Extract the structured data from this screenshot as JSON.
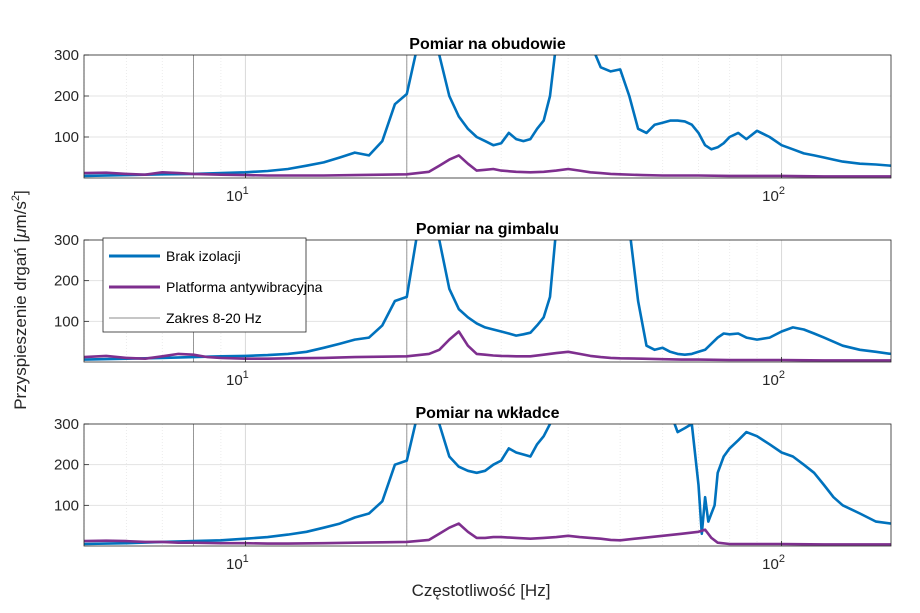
{
  "colors": {
    "brak": "#0072BD",
    "platforma": "#7E2F8E",
    "zakres": "#8c8c8c"
  },
  "legend": {
    "entries": [
      {
        "label": "Brak izolacji",
        "color": "#0072BD"
      },
      {
        "label": "Platforma antywibracyjna",
        "color": "#7E2F8E"
      },
      {
        "label": "Zakres 8-20 Hz",
        "color": "#8c8c8c"
      }
    ]
  },
  "ylabel": "Przyspieszenie drgań [μm/s²]",
  "ylabel_parts": {
    "pre": "Przyspieszenie drgań [",
    "mu": "μ",
    "mid": "m/s",
    "sup": "2",
    "post": "]"
  },
  "xlabel": "Częstotliwość [Hz]",
  "chart_data": [
    {
      "type": "line",
      "title": "Pomiar na obudowie",
      "xscale": "log",
      "xlim": [
        5,
        160
      ],
      "ylim": [
        0,
        300
      ],
      "yticks": [
        100,
        200,
        300
      ],
      "xticks": [
        {
          "value": 10,
          "base": "10",
          "exp": "1"
        },
        {
          "value": 100,
          "base": "10",
          "exp": "2"
        }
      ],
      "vlines": [
        8,
        20
      ],
      "grid": true,
      "series": [
        {
          "name": "Brak izolacji",
          "color": "#0072BD",
          "x": [
            5,
            6,
            7,
            8,
            9,
            10,
            11,
            12,
            13,
            14,
            15,
            16,
            17,
            18,
            19,
            20,
            21,
            22,
            23,
            24,
            25,
            26,
            27,
            28,
            29,
            30,
            31,
            32,
            33,
            34,
            35,
            36,
            37,
            38,
            40,
            42,
            44,
            46,
            48,
            50,
            52,
            54,
            56,
            58,
            60,
            62,
            64,
            66,
            68,
            70,
            72,
            74,
            76,
            78,
            80,
            83,
            86,
            90,
            95,
            100,
            105,
            110,
            115,
            120,
            125,
            130,
            140,
            150,
            160
          ],
          "y": [
            5,
            7,
            9,
            10,
            12,
            14,
            17,
            22,
            30,
            38,
            50,
            62,
            55,
            90,
            180,
            205,
            330,
            330,
            300,
            200,
            150,
            120,
            100,
            90,
            80,
            85,
            110,
            95,
            90,
            95,
            120,
            140,
            200,
            330,
            330,
            330,
            330,
            270,
            260,
            265,
            200,
            120,
            110,
            130,
            135,
            140,
            140,
            138,
            130,
            110,
            80,
            70,
            75,
            85,
            100,
            110,
            95,
            115,
            100,
            80,
            70,
            60,
            55,
            50,
            45,
            40,
            35,
            33,
            30
          ],
          "mask": []
        },
        {
          "name": "Platforma antywibracyjna",
          "color": "#7E2F8E",
          "x": [
            5,
            5.5,
            6,
            6.5,
            7,
            7.5,
            8,
            9,
            10,
            11,
            12,
            14,
            16,
            18,
            20,
            22,
            23,
            24,
            25,
            26,
            27,
            28,
            29,
            30,
            32,
            34,
            36,
            38,
            40,
            42,
            44,
            46,
            48,
            50,
            55,
            60,
            65,
            70,
            80,
            90,
            100,
            120,
            140,
            160
          ],
          "y": [
            12,
            13,
            10,
            8,
            14,
            12,
            10,
            8,
            7,
            6,
            6,
            6,
            7,
            8,
            9,
            15,
            30,
            45,
            55,
            35,
            18,
            20,
            22,
            18,
            15,
            14,
            15,
            18,
            22,
            18,
            14,
            12,
            10,
            9,
            7,
            6,
            6,
            6,
            5,
            5,
            5,
            4,
            4,
            4
          ]
        }
      ]
    },
    {
      "type": "line",
      "title": "Pomiar na gimbalu",
      "xscale": "log",
      "xlim": [
        5,
        160
      ],
      "ylim": [
        0,
        300
      ],
      "yticks": [
        100,
        200,
        300
      ],
      "xticks": [
        {
          "value": 10,
          "base": "10",
          "exp": "1"
        },
        {
          "value": 100,
          "base": "10",
          "exp": "2"
        }
      ],
      "vlines": [
        8,
        20
      ],
      "grid": true,
      "series": [
        {
          "name": "Brak izolacji",
          "color": "#0072BD",
          "x": [
            5,
            6,
            7,
            8,
            9,
            10,
            11,
            12,
            13,
            14,
            15,
            16,
            17,
            18,
            19,
            20,
            21,
            22,
            23,
            24,
            25,
            26,
            27,
            28,
            29,
            30,
            31,
            32,
            33,
            34,
            35,
            36,
            37,
            38,
            40,
            42,
            44,
            46,
            48,
            50,
            52,
            54,
            56,
            58,
            60,
            62,
            64,
            66,
            68,
            70,
            72,
            74,
            76,
            78,
            80,
            83,
            86,
            90,
            95,
            100,
            105,
            110,
            115,
            120,
            125,
            130,
            140,
            150,
            160
          ],
          "y": [
            6,
            8,
            10,
            12,
            14,
            15,
            17,
            20,
            25,
            35,
            45,
            55,
            60,
            90,
            150,
            160,
            330,
            330,
            300,
            180,
            130,
            110,
            95,
            85,
            80,
            75,
            70,
            65,
            68,
            72,
            90,
            110,
            160,
            330,
            330,
            330,
            330,
            330,
            330,
            330,
            330,
            150,
            40,
            30,
            35,
            25,
            20,
            18,
            20,
            25,
            30,
            45,
            60,
            70,
            68,
            70,
            60,
            55,
            60,
            75,
            85,
            80,
            70,
            60,
            50,
            40,
            30,
            25,
            20
          ]
        },
        {
          "name": "Platforma antywibracyjna",
          "color": "#7E2F8E",
          "x": [
            5,
            5.5,
            6,
            6.5,
            7,
            7.5,
            8,
            8.5,
            9,
            10,
            11,
            12,
            14,
            16,
            18,
            20,
            22,
            23,
            24,
            25,
            26,
            27,
            28,
            29,
            30,
            32,
            34,
            36,
            38,
            40,
            42,
            44,
            46,
            48,
            50,
            55,
            60,
            65,
            70,
            80,
            90,
            100,
            120,
            140,
            160
          ],
          "y": [
            12,
            15,
            10,
            8,
            14,
            20,
            18,
            12,
            10,
            8,
            8,
            9,
            10,
            12,
            13,
            14,
            20,
            30,
            55,
            75,
            40,
            20,
            18,
            16,
            15,
            14,
            14,
            18,
            22,
            25,
            20,
            15,
            12,
            10,
            9,
            8,
            7,
            6,
            6,
            5,
            5,
            5,
            4,
            4,
            4
          ]
        }
      ]
    },
    {
      "type": "line",
      "title": "Pomiar na wkładce",
      "xscale": "log",
      "xlim": [
        5,
        160
      ],
      "ylim": [
        0,
        300
      ],
      "yticks": [
        100,
        200,
        300
      ],
      "xticks": [
        {
          "value": 10,
          "base": "10",
          "exp": "1"
        },
        {
          "value": 100,
          "base": "10",
          "exp": "2"
        }
      ],
      "vlines": [
        8,
        20
      ],
      "grid": true,
      "series": [
        {
          "name": "Brak izolacji",
          "color": "#0072BD",
          "x": [
            5,
            6,
            7,
            8,
            9,
            10,
            11,
            12,
            13,
            14,
            15,
            16,
            17,
            18,
            19,
            20,
            21,
            22,
            23,
            24,
            25,
            26,
            27,
            28,
            29,
            30,
            31,
            32,
            33,
            34,
            35,
            36,
            37,
            38,
            40,
            42,
            44,
            46,
            48,
            50,
            52,
            54,
            56,
            58,
            60,
            62,
            64,
            66,
            68,
            70,
            71,
            72,
            73,
            74,
            75,
            76,
            78,
            80,
            83,
            86,
            90,
            95,
            100,
            105,
            110,
            115,
            120,
            125,
            130,
            140,
            150,
            160
          ],
          "y": [
            5,
            7,
            10,
            12,
            14,
            18,
            22,
            28,
            35,
            45,
            55,
            70,
            80,
            110,
            200,
            210,
            330,
            330,
            300,
            220,
            195,
            185,
            180,
            185,
            200,
            210,
            240,
            230,
            225,
            220,
            250,
            270,
            300,
            330,
            330,
            330,
            330,
            330,
            330,
            330,
            330,
            330,
            330,
            330,
            330,
            330,
            280,
            290,
            300,
            150,
            30,
            120,
            60,
            80,
            100,
            180,
            220,
            240,
            260,
            280,
            270,
            250,
            230,
            220,
            200,
            180,
            150,
            120,
            100,
            80,
            60,
            55
          ]
        },
        {
          "name": "Platforma antywibracyjna",
          "color": "#7E2F8E",
          "x": [
            5,
            5.5,
            6,
            6.5,
            7,
            7.5,
            8,
            9,
            10,
            11,
            12,
            14,
            16,
            18,
            20,
            22,
            23,
            24,
            25,
            26,
            27,
            28,
            29,
            30,
            32,
            34,
            36,
            38,
            40,
            42,
            44,
            46,
            48,
            50,
            55,
            60,
            65,
            70,
            72,
            74,
            76,
            80,
            90,
            100,
            120,
            140,
            160
          ],
          "y": [
            12,
            13,
            12,
            10,
            10,
            8,
            8,
            7,
            7,
            6,
            6,
            7,
            8,
            9,
            10,
            15,
            30,
            45,
            55,
            35,
            20,
            20,
            22,
            22,
            20,
            18,
            20,
            22,
            25,
            22,
            20,
            18,
            15,
            14,
            20,
            25,
            30,
            35,
            40,
            20,
            8,
            5,
            5,
            5,
            4,
            4,
            4
          ]
        }
      ]
    }
  ]
}
